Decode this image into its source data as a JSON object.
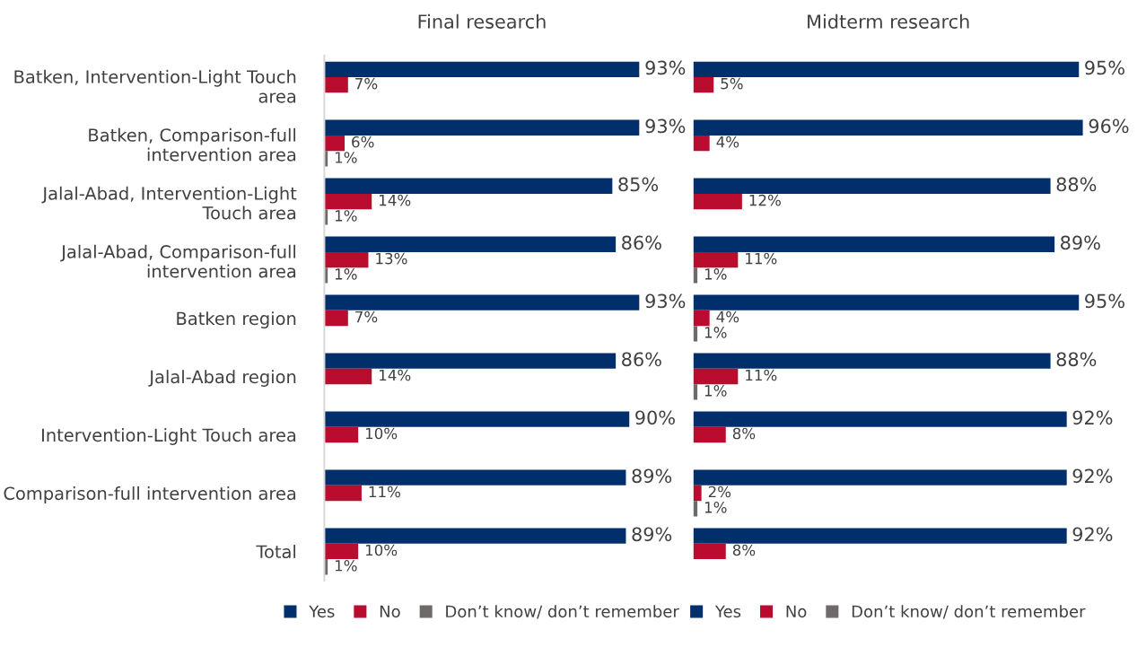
{
  "chart_data": [
    {
      "type": "bar",
      "orientation": "horizontal",
      "title": "Final research",
      "legend": "bottom",
      "categories": [
        "Batken, Intervention-Light Touch area",
        "Batken, Comparison-full intervention area",
        "Jalal-Abad, Intervention-Light Touch area",
        "Jalal-Abad, Comparison-full intervention area",
        "Batken region",
        "Jalal-Abad region",
        "Intervention-Light Touch area",
        "Comparison-full intervention area",
        "Total"
      ],
      "series": [
        {
          "name": "Yes",
          "color": "#002f6c",
          "values": [
            93,
            93,
            85,
            86,
            93,
            86,
            90,
            89,
            89
          ],
          "value_labels": [
            "93%",
            "93%",
            "85%",
            "86%",
            "93%",
            "86%",
            "90%",
            "89%",
            "89%"
          ]
        },
        {
          "name": "No",
          "color": "#ba0c2f",
          "values": [
            7,
            6,
            14,
            13,
            7,
            14,
            10,
            11,
            10
          ],
          "value_labels": [
            "7%",
            "6%",
            "14%",
            "13%",
            "7%",
            "14%",
            "10%",
            "11%",
            "10%"
          ]
        },
        {
          "name": "Don’t know/ don’t remember",
          "color": "#6f6a6a",
          "values": [
            null,
            1,
            1,
            1,
            null,
            null,
            null,
            null,
            1
          ],
          "value_labels": [
            null,
            "1%",
            "1%",
            "1%",
            null,
            null,
            null,
            null,
            "1%"
          ]
        }
      ]
    },
    {
      "type": "bar",
      "orientation": "horizontal",
      "title": "Midterm research",
      "legend": "bottom",
      "tick_labels": false,
      "categories": [
        null,
        null,
        null,
        null,
        null,
        null,
        null,
        null,
        null
      ],
      "series": [
        {
          "name": "Yes",
          "color": "#002f6c",
          "values": [
            95,
            96,
            88,
            89,
            95,
            88,
            92,
            92,
            92
          ],
          "value_labels": [
            "95%",
            "96%",
            "88%",
            "89%",
            "95%",
            "88%",
            "92%",
            "92%",
            "92%"
          ]
        },
        {
          "name": "No",
          "color": "#ba0c2f",
          "values": [
            5,
            4,
            12,
            11,
            4,
            11,
            8,
            2,
            8
          ],
          "value_labels": [
            "5%",
            "4%",
            "12%",
            "11%",
            "4%",
            "11%",
            "8%",
            "2%",
            "8%"
          ]
        },
        {
          "name": "Don’t know/ don’t remember",
          "color": "#6f6a6a",
          "values": [
            null,
            null,
            null,
            1,
            1,
            1,
            null,
            1,
            null
          ],
          "value_labels": [
            null,
            null,
            null,
            "1%",
            "1%",
            "1%",
            null,
            "1%",
            null
          ]
        }
      ]
    }
  ]
}
